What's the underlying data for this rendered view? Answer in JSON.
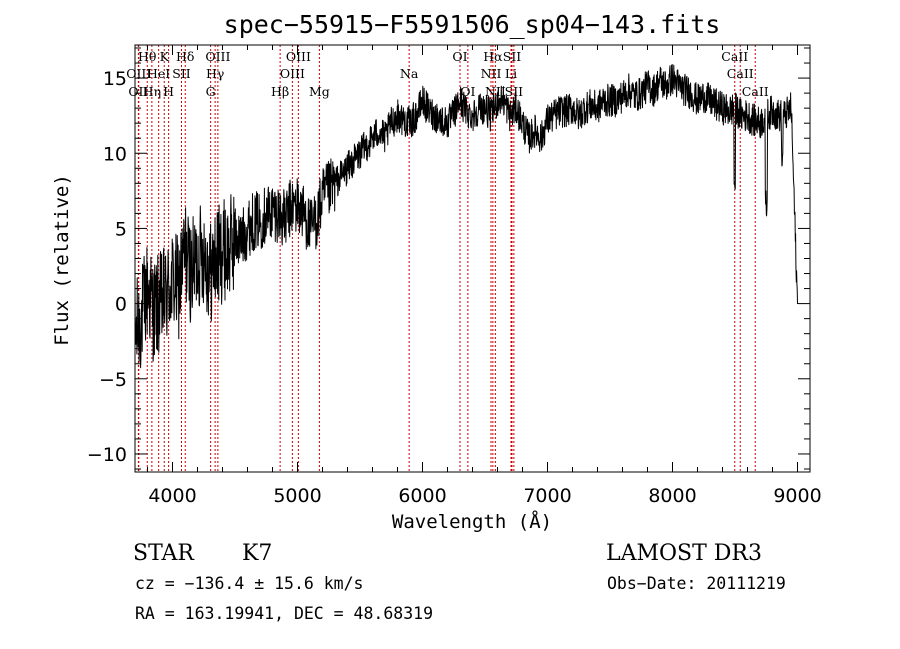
{
  "chart_data": {
    "type": "line",
    "title": "spec−55915−F5591506_sp04−143.fits",
    "xlabel": "Wavelength (Å)",
    "ylabel": "Flux (relative)",
    "xlim": [
      3700,
      9100
    ],
    "ylim": [
      -11.2,
      17.2
    ],
    "x_ticks": [
      4000,
      5000,
      6000,
      7000,
      8000,
      9000
    ],
    "x_tick_labels": [
      "4000",
      "5000",
      "6000",
      "7000",
      "8000",
      "9000"
    ],
    "y_ticks": [
      -10,
      -5,
      0,
      5,
      10,
      15
    ],
    "y_tick_labels": [
      "−10",
      "−5",
      "0",
      "5",
      "10",
      "15"
    ],
    "grid": false,
    "series": [
      {
        "name": "flux",
        "x": [
          3700,
          3750,
          3800,
          3850,
          3900,
          3950,
          4000,
          4050,
          4100,
          4150,
          4200,
          4250,
          4300,
          4350,
          4400,
          4450,
          4500,
          4550,
          4600,
          4650,
          4700,
          4750,
          4800,
          4850,
          4900,
          4950,
          5000,
          5050,
          5100,
          5150,
          5200,
          5250,
          5300,
          5350,
          5400,
          5450,
          5500,
          5550,
          5600,
          5650,
          5700,
          5750,
          5800,
          5850,
          5900,
          5950,
          6000,
          6050,
          6100,
          6150,
          6200,
          6250,
          6300,
          6350,
          6400,
          6450,
          6500,
          6550,
          6600,
          6650,
          6700,
          6750,
          6800,
          6850,
          6900,
          6950,
          7000,
          7050,
          7100,
          7150,
          7200,
          7250,
          7300,
          7350,
          7400,
          7450,
          7500,
          7550,
          7600,
          7650,
          7700,
          7750,
          7800,
          7850,
          7900,
          7950,
          8000,
          8050,
          8100,
          8150,
          8200,
          8250,
          8300,
          8350,
          8400,
          8450,
          8500,
          8550,
          8600,
          8650,
          8700,
          8750,
          8800,
          8850,
          8900,
          8950,
          9000
        ],
        "y": [
          -2.0,
          -1.0,
          1.0,
          -0.5,
          0.0,
          0.5,
          1.5,
          1.0,
          3.5,
          2.0,
          3.0,
          3.5,
          2.0,
          3.0,
          3.5,
          3.5,
          4.5,
          4.2,
          5.0,
          5.5,
          5.5,
          6.0,
          6.2,
          6.0,
          5.5,
          6.5,
          6.5,
          6.0,
          5.0,
          5.5,
          7.0,
          7.5,
          8.0,
          8.5,
          9.0,
          9.5,
          10.0,
          10.5,
          11.0,
          11.5,
          11.0,
          12.0,
          12.5,
          12.2,
          12.0,
          12.5,
          13.5,
          12.8,
          12.5,
          12.2,
          12.0,
          12.6,
          13.5,
          12.8,
          12.5,
          13.0,
          13.0,
          12.5,
          13.5,
          13.5,
          12.5,
          13.0,
          12.0,
          11.0,
          11.5,
          11.0,
          12.2,
          12.5,
          12.8,
          12.8,
          13.0,
          12.5,
          13.0,
          13.2,
          13.0,
          13.5,
          13.5,
          13.5,
          13.8,
          14.2,
          13.8,
          14.0,
          14.5,
          14.2,
          14.8,
          14.5,
          15.0,
          14.5,
          14.2,
          14.0,
          13.5,
          13.8,
          13.5,
          13.2,
          13.0,
          12.8,
          13.0,
          12.5,
          12.5,
          12.2,
          12.0,
          12.5,
          12.8,
          12.5,
          12.5,
          13.0,
          -0.2
        ]
      }
    ],
    "spectral_lines": [
      {
        "label": "Hθ",
        "x": 3798,
        "row": 1
      },
      {
        "label": "Hη",
        "x": 3835,
        "row": 3
      },
      {
        "label": "OII",
        "x": 3727,
        "row": 3
      },
      {
        "label": "OIII",
        "x": 3730,
        "row": 2
      },
      {
        "label": "HeI",
        "x": 3889,
        "row": 2
      },
      {
        "label": "K",
        "x": 3934,
        "row": 1
      },
      {
        "label": "H",
        "x": 3969,
        "row": 3
      },
      {
        "label": "SII",
        "x": 4072,
        "row": 2
      },
      {
        "label": "Hδ",
        "x": 4102,
        "row": 1
      },
      {
        "label": "OIII",
        "x": 4363,
        "row": 1
      },
      {
        "label": "Hγ",
        "x": 4341,
        "row": 2
      },
      {
        "label": "G",
        "x": 4305,
        "row": 3
      },
      {
        "label": "Hβ",
        "x": 4861,
        "row": 3
      },
      {
        "label": "OIII",
        "x": 4959,
        "row": 2
      },
      {
        "label": "OIII",
        "x": 5007,
        "row": 1
      },
      {
        "label": "Mg",
        "x": 5175,
        "row": 3
      },
      {
        "label": "Na",
        "x": 5893,
        "row": 2
      },
      {
        "label": "OI",
        "x": 6300,
        "row": 1
      },
      {
        "label": "OI",
        "x": 6363,
        "row": 3
      },
      {
        "label": "Hα",
        "x": 6563,
        "row": 1
      },
      {
        "label": "NII",
        "x": 6548,
        "row": 2
      },
      {
        "label": "NII",
        "x": 6583,
        "row": 3
      },
      {
        "label": "SII",
        "x": 6716,
        "row": 1
      },
      {
        "label": "SII",
        "x": 6731,
        "row": 3
      },
      {
        "label": "Li",
        "x": 6708,
        "row": 2
      },
      {
        "label": "CaII",
        "x": 8498,
        "row": 1
      },
      {
        "label": "CaII",
        "x": 8542,
        "row": 2
      },
      {
        "label": "CaII",
        "x": 8662,
        "row": 3
      }
    ],
    "line_marker_color": "#cc0000"
  },
  "info": {
    "class": "STAR",
    "subclass": "K7",
    "survey": "LAMOST DR3",
    "cz": "cz = −136.4 ± 15.6 km/s",
    "obs_date": "Obs−Date: 20111219",
    "coords": "RA = 163.19941, DEC =  48.68319"
  }
}
